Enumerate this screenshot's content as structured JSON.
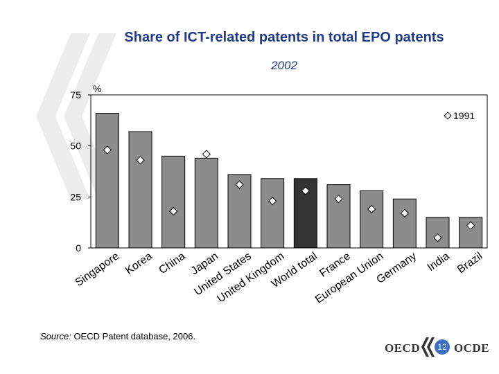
{
  "header": {
    "title": "Share of ICT-related patents in total EPO patents",
    "subtitle": "2002"
  },
  "source": {
    "label": "Source:",
    "text": "OECD Patent database, 2006."
  },
  "footer": {
    "left_logo_text": "OECD",
    "right_logo_text": "OCDE",
    "page_number": "12"
  },
  "colors": {
    "bar": "#8c8c8c",
    "bar_highlight": "#333333",
    "title": "#1f3a8a",
    "page_badge": "#3a6fc4"
  },
  "chart_data": {
    "type": "bar",
    "title": "Share of ICT-related patents in total EPO patents",
    "subtitle": "2002",
    "ylabel": "%",
    "ylim": [
      0,
      75
    ],
    "yticks": [
      0,
      25,
      50,
      75
    ],
    "grid": false,
    "legend_position": "top-right",
    "categories": [
      "Singapore",
      "Korea",
      "China",
      "Japan",
      "United States",
      "United Kingdom",
      "World total",
      "France",
      "European Union",
      "Germany",
      "India",
      "Brazil"
    ],
    "highlight_category": "World total",
    "series": [
      {
        "name": "2002",
        "kind": "bar",
        "values": [
          66,
          57,
          45,
          44,
          36,
          34,
          34,
          31,
          28,
          24,
          15,
          15
        ]
      },
      {
        "name": "1991",
        "kind": "marker",
        "marker": "diamond",
        "values": [
          48,
          43,
          18,
          46,
          31,
          23,
          28,
          24,
          19,
          17,
          5,
          11
        ]
      }
    ]
  }
}
